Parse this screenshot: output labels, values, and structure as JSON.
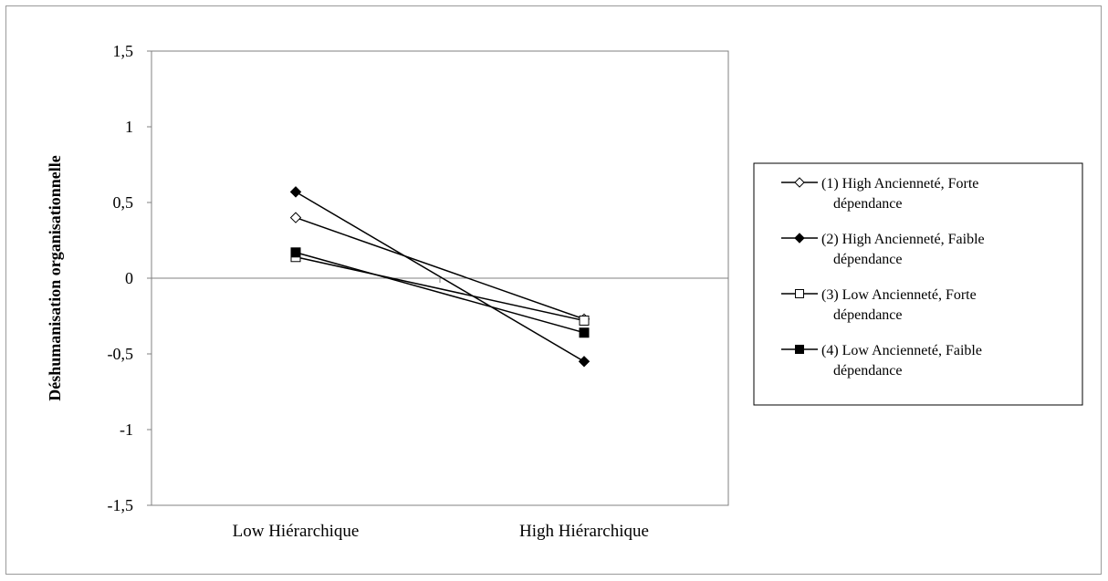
{
  "chart_data": {
    "type": "line",
    "title": "",
    "xlabel": "",
    "ylabel": "Déshumanisation organisationnelle",
    "categories": [
      "Low Hiérarchique",
      "High Hiérarchique"
    ],
    "ylim": [
      -1.5,
      1.5
    ],
    "yticks": [
      1.5,
      1,
      0.5,
      0,
      -0.5,
      -1,
      -1.5
    ],
    "ytick_labels": [
      "1,5",
      "1",
      "0,5",
      "0",
      "-0,5",
      "-1",
      "-1,5"
    ],
    "grid": false,
    "legend_position": "right",
    "series": [
      {
        "name_line1": "(1) High Ancienneté, Forte",
        "name_line2": "dépendance",
        "marker": "diamond-open",
        "values": [
          0.4,
          -0.27
        ]
      },
      {
        "name_line1": "(2) High Ancienneté, Faible",
        "name_line2": "dépendance",
        "marker": "diamond-filled",
        "values": [
          0.57,
          -0.55
        ]
      },
      {
        "name_line1": "(3) Low Ancienneté, Forte",
        "name_line2": "dépendance",
        "marker": "square-open",
        "values": [
          0.14,
          -0.28
        ]
      },
      {
        "name_line1": "(4) Low Ancienneté, Faible",
        "name_line2": "dépendance",
        "marker": "square-filled",
        "values": [
          0.17,
          -0.36
        ]
      }
    ],
    "colors": {
      "line": "#000000",
      "axis": "#808080",
      "frame": "#9a9a9a"
    }
  }
}
